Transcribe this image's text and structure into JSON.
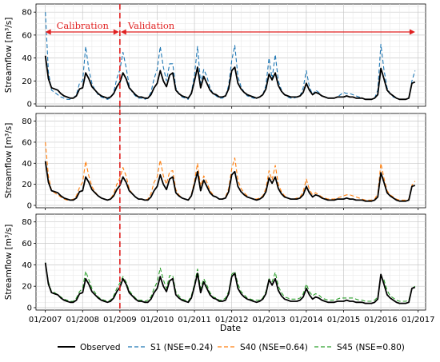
{
  "chart_data": {
    "type": "line",
    "xlabel": "Date",
    "ylabel": "Streamflow [m³/s]",
    "ylim": [
      0,
      85
    ],
    "yticks": [
      "0",
      "20",
      "40",
      "60",
      "80"
    ],
    "xlim": [
      2006.75,
      2017.2
    ],
    "xticks": [
      {
        "value": 2007,
        "label": "01/2007"
      },
      {
        "value": 2008,
        "label": "01/2008"
      },
      {
        "value": 2009,
        "label": "01/2009"
      },
      {
        "value": 2010,
        "label": "01/2010"
      },
      {
        "value": 2011,
        "label": "01/2011"
      },
      {
        "value": 2012,
        "label": "01/2012"
      },
      {
        "value": 2013,
        "label": "01/2013"
      },
      {
        "value": 2014,
        "label": "01/2014"
      },
      {
        "value": 2015,
        "label": "01/2015"
      },
      {
        "value": 2016,
        "label": "01/2016"
      },
      {
        "value": 2017,
        "label": "01/2017"
      }
    ],
    "grid": true,
    "legend_position": "bottom",
    "split_date": 2009.0,
    "annotations": {
      "calibration": "Calibration",
      "validation": "Validation"
    },
    "colors": {
      "observed": "#000000",
      "s1": "#1f77b4",
      "s40": "#ff7f0e",
      "s45": "#2ca02c",
      "split": "#e02020",
      "grid": "#d9d9d9"
    },
    "x": [
      2007.0,
      2007.083,
      2007.167,
      2007.25,
      2007.333,
      2007.417,
      2007.5,
      2007.583,
      2007.667,
      2007.75,
      2007.833,
      2007.917,
      2008.0,
      2008.083,
      2008.167,
      2008.25,
      2008.333,
      2008.417,
      2008.5,
      2008.583,
      2008.667,
      2008.75,
      2008.833,
      2008.917,
      2009.0,
      2009.083,
      2009.167,
      2009.25,
      2009.333,
      2009.417,
      2009.5,
      2009.583,
      2009.667,
      2009.75,
      2009.833,
      2009.917,
      2010.0,
      2010.083,
      2010.167,
      2010.25,
      2010.333,
      2010.417,
      2010.5,
      2010.583,
      2010.667,
      2010.75,
      2010.833,
      2010.917,
      2011.0,
      2011.083,
      2011.167,
      2011.25,
      2011.333,
      2011.417,
      2011.5,
      2011.583,
      2011.667,
      2011.75,
      2011.833,
      2011.917,
      2012.0,
      2012.083,
      2012.167,
      2012.25,
      2012.333,
      2012.417,
      2012.5,
      2012.583,
      2012.667,
      2012.75,
      2012.833,
      2012.917,
      2013.0,
      2013.083,
      2013.167,
      2013.25,
      2013.333,
      2013.417,
      2013.5,
      2013.583,
      2013.667,
      2013.75,
      2013.833,
      2013.917,
      2014.0,
      2014.083,
      2014.167,
      2014.25,
      2014.333,
      2014.417,
      2014.5,
      2014.583,
      2014.667,
      2014.75,
      2014.833,
      2014.917,
      2015.0,
      2015.083,
      2015.167,
      2015.25,
      2015.333,
      2015.417,
      2015.5,
      2015.583,
      2015.667,
      2015.75,
      2015.833,
      2015.917,
      2016.0,
      2016.083,
      2016.167,
      2016.25,
      2016.333,
      2016.417,
      2016.5,
      2016.583,
      2016.667,
      2016.75,
      2016.833,
      2016.917
    ],
    "panels": [
      {
        "series": [
          "observed",
          "s1"
        ]
      },
      {
        "series": [
          "observed",
          "s40"
        ]
      },
      {
        "series": [
          "observed",
          "s45"
        ]
      }
    ],
    "series": {
      "observed": {
        "name": "Observed",
        "values": [
          42,
          22,
          14,
          13,
          12,
          9,
          7,
          6,
          5,
          5,
          7,
          13,
          14,
          27,
          22,
          15,
          12,
          9,
          7,
          6,
          5,
          6,
          9,
          15,
          19,
          27,
          22,
          14,
          11,
          8,
          6,
          6,
          5,
          5,
          8,
          14,
          18,
          29,
          20,
          15,
          25,
          27,
          12,
          9,
          7,
          6,
          5,
          9,
          20,
          32,
          14,
          24,
          18,
          12,
          9,
          8,
          6,
          6,
          7,
          13,
          29,
          32,
          18,
          13,
          10,
          8,
          7,
          6,
          5,
          6,
          8,
          13,
          26,
          21,
          27,
          16,
          11,
          8,
          7,
          6,
          6,
          6,
          7,
          10,
          18,
          12,
          8,
          10,
          9,
          7,
          6,
          5,
          5,
          5,
          6,
          6,
          6,
          7,
          6,
          6,
          5,
          5,
          5,
          4,
          4,
          4,
          5,
          8,
          31,
          22,
          12,
          9,
          7,
          5,
          4,
          4,
          4,
          5,
          18,
          19
        ]
      },
      "s1": {
        "name": "S1 (NSE=0.24)",
        "values": [
          80,
          28,
          12,
          10,
          8,
          6,
          5,
          4,
          4,
          5,
          8,
          18,
          20,
          50,
          30,
          18,
          12,
          8,
          6,
          5,
          4,
          5,
          10,
          22,
          30,
          45,
          32,
          16,
          10,
          7,
          5,
          5,
          4,
          5,
          10,
          22,
          30,
          50,
          32,
          20,
          35,
          35,
          14,
          9,
          6,
          5,
          4,
          10,
          25,
          50,
          18,
          30,
          24,
          14,
          9,
          7,
          5,
          5,
          7,
          16,
          38,
          51,
          24,
          15,
          10,
          7,
          6,
          5,
          5,
          6,
          8,
          16,
          40,
          22,
          43,
          20,
          12,
          8,
          6,
          5,
          5,
          6,
          7,
          14,
          29,
          15,
          8,
          12,
          10,
          7,
          6,
          5,
          5,
          5,
          6,
          8,
          10,
          9,
          9,
          8,
          7,
          6,
          5,
          4,
          4,
          4,
          5,
          12,
          52,
          30,
          14,
          9,
          6,
          5,
          4,
          4,
          4,
          5,
          20,
          29
        ]
      },
      "s40": {
        "name": "S40 (NSE=0.64)",
        "values": [
          60,
          28,
          14,
          12,
          10,
          8,
          6,
          5,
          5,
          6,
          9,
          17,
          22,
          42,
          28,
          18,
          13,
          9,
          7,
          6,
          5,
          6,
          11,
          20,
          26,
          36,
          28,
          16,
          11,
          8,
          6,
          6,
          5,
          6,
          11,
          22,
          27,
          43,
          28,
          20,
          32,
          33,
          15,
          10,
          7,
          6,
          5,
          10,
          23,
          40,
          18,
          28,
          22,
          14,
          10,
          8,
          6,
          6,
          8,
          16,
          35,
          45,
          24,
          16,
          12,
          9,
          7,
          6,
          6,
          7,
          9,
          16,
          33,
          24,
          38,
          20,
          13,
          9,
          7,
          6,
          6,
          7,
          8,
          13,
          25,
          15,
          10,
          12,
          10,
          8,
          7,
          6,
          6,
          6,
          7,
          8,
          9,
          10,
          10,
          9,
          8,
          7,
          6,
          5,
          5,
          5,
          6,
          11,
          40,
          26,
          14,
          10,
          8,
          6,
          5,
          5,
          5,
          6,
          19,
          23
        ]
      },
      "s45": {
        "name": "S45 (NSE=0.80)",
        "values": [
          42,
          24,
          15,
          14,
          12,
          10,
          8,
          7,
          6,
          6,
          9,
          15,
          18,
          34,
          26,
          18,
          14,
          10,
          8,
          7,
          6,
          7,
          11,
          18,
          23,
          29,
          24,
          16,
          12,
          9,
          7,
          7,
          6,
          7,
          10,
          18,
          24,
          37,
          26,
          18,
          30,
          30,
          15,
          11,
          8,
          7,
          6,
          11,
          22,
          36,
          18,
          27,
          21,
          14,
          10,
          9,
          7,
          7,
          9,
          15,
          31,
          34,
          22,
          15,
          12,
          9,
          8,
          7,
          7,
          7,
          9,
          15,
          27,
          24,
          33,
          20,
          14,
          10,
          9,
          8,
          8,
          8,
          9,
          13,
          22,
          15,
          11,
          13,
          12,
          9,
          8,
          7,
          7,
          7,
          8,
          9,
          9,
          9,
          9,
          9,
          8,
          7,
          7,
          6,
          6,
          6,
          7,
          10,
          30,
          26,
          16,
          11,
          9,
          7,
          6,
          6,
          6,
          7,
          18,
          20
        ]
      }
    },
    "legend": [
      {
        "key": "observed",
        "label": "Observed"
      },
      {
        "key": "s1",
        "label": "S1 (NSE=0.24)"
      },
      {
        "key": "s40",
        "label": "S40 (NSE=0.64)"
      },
      {
        "key": "s45",
        "label": "S45 (NSE=0.80)"
      }
    ]
  }
}
